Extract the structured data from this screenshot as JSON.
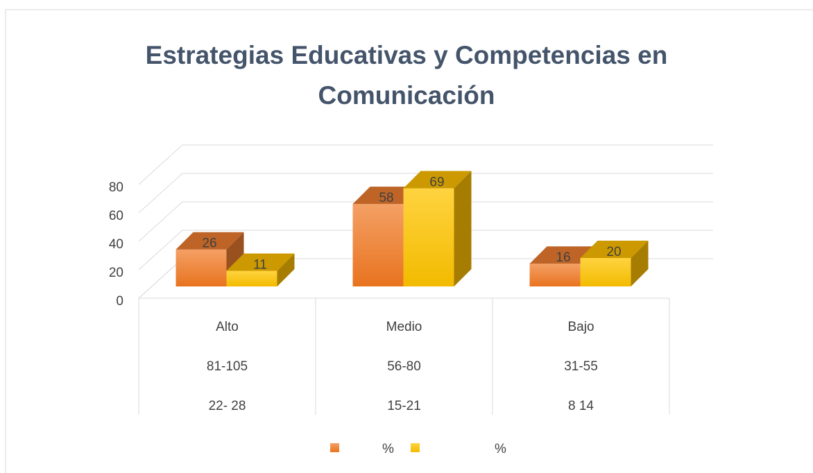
{
  "chart_data": {
    "type": "bar3d",
    "title": [
      "Estrategias Educativas y Competencias en",
      "Comunicación"
    ],
    "categories": [
      [
        "Alto",
        "81-105",
        "22- 28"
      ],
      [
        "Medio",
        "56-80",
        "15-21"
      ],
      [
        "Bajo",
        "31-55",
        "8  14"
      ]
    ],
    "series": [
      {
        "name": "%",
        "color": "#ed7d31",
        "values": [
          26,
          58,
          16
        ]
      },
      {
        "name": "%",
        "color": "#ffc000",
        "values": [
          11,
          69,
          20
        ]
      }
    ],
    "ylim": [
      0,
      80
    ],
    "yticks": [
      0,
      20,
      40,
      60,
      80
    ],
    "grid": true,
    "legend": "bottom"
  }
}
